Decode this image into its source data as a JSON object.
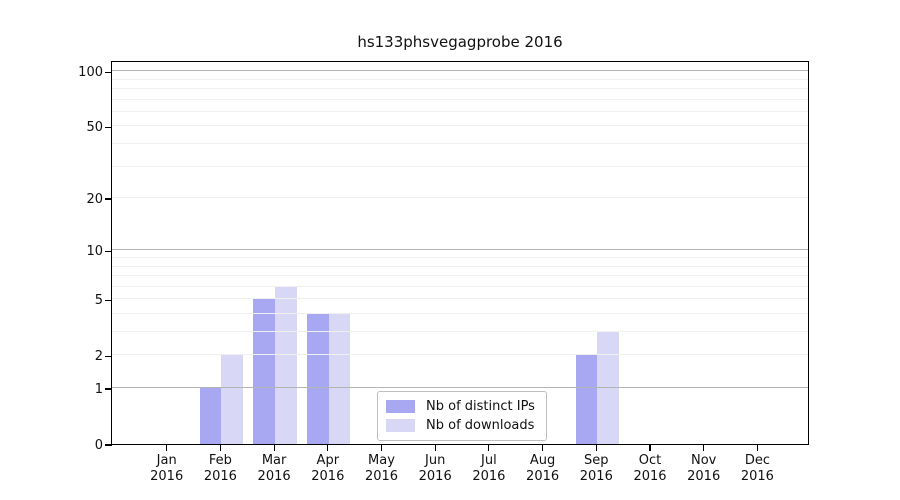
{
  "chart_data": {
    "type": "bar",
    "title": "hs133phsvegagprobe 2016",
    "categories": [
      "Jan",
      "Feb",
      "Mar",
      "Apr",
      "May",
      "Jun",
      "Jul",
      "Aug",
      "Sep",
      "Oct",
      "Nov",
      "Dec"
    ],
    "category_year": "2016",
    "series": [
      {
        "name": "Nb of distinct IPs",
        "color": "#a8a8f2",
        "values": [
          0,
          1,
          5,
          4,
          0,
          0,
          0,
          0,
          2,
          0,
          0,
          0
        ]
      },
      {
        "name": "Nb of downloads",
        "color": "#d8d8f6",
        "values": [
          0,
          2,
          6,
          4,
          0,
          0,
          0,
          0,
          3,
          0,
          0,
          0
        ]
      }
    ],
    "xlabel": "",
    "ylabel": "",
    "yscale": "log1p",
    "ylim": [
      0,
      115
    ],
    "yticks": [
      0,
      1,
      2,
      5,
      10,
      20,
      50,
      100
    ],
    "major_gridlines": [
      1,
      10,
      100
    ],
    "minor_gridlines": [
      2,
      3,
      4,
      5,
      6,
      7,
      8,
      9,
      20,
      30,
      40,
      50,
      60,
      70,
      80,
      90
    ],
    "grid": true,
    "legend_position": "lower-center-inside"
  }
}
